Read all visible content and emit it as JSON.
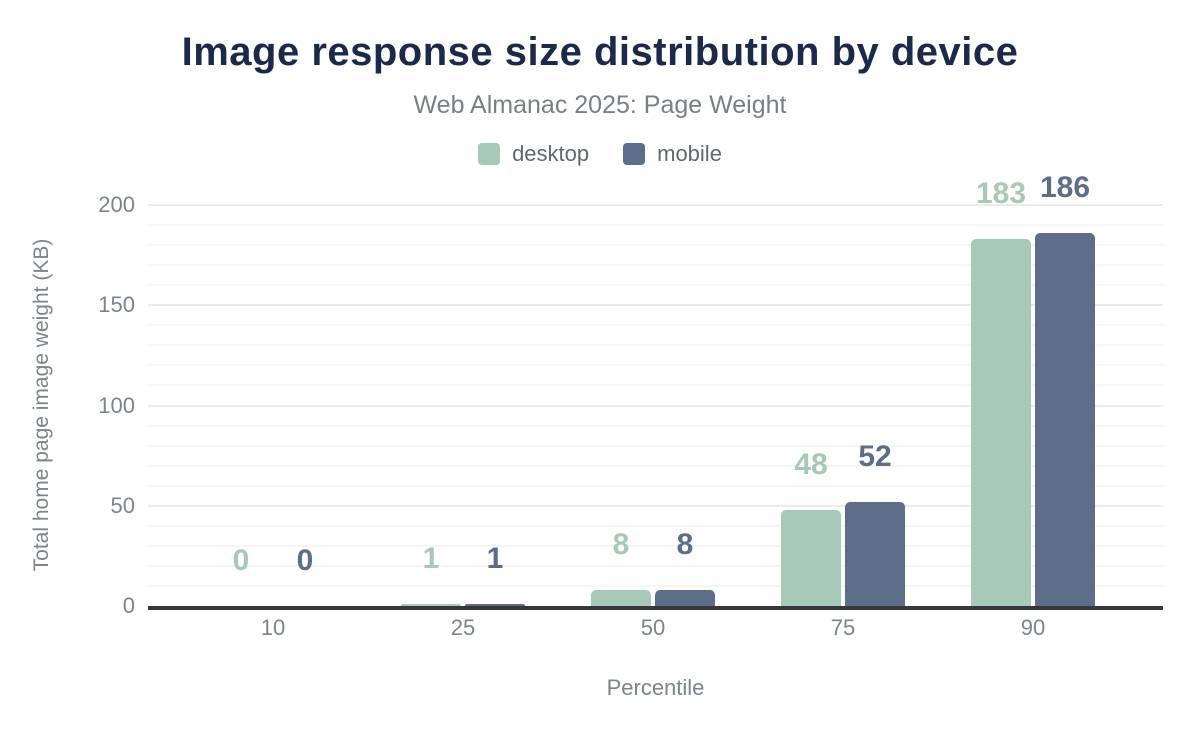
{
  "header": {
    "title": "Image response size distribution by device",
    "subtitle": "Web Almanac 2025: Page Weight"
  },
  "legend": {
    "items": [
      {
        "label": "desktop",
        "color": "#a6c9b8"
      },
      {
        "label": "mobile",
        "color": "#5d6e8a"
      }
    ]
  },
  "chart_data": {
    "type": "bar",
    "title": "Image response size distribution by device",
    "subtitle": "Web Almanac 2025: Page Weight",
    "categories": [
      "10",
      "25",
      "50",
      "75",
      "90"
    ],
    "series": [
      {
        "name": "desktop",
        "color": "#a6c9b8",
        "values": [
          0,
          1,
          8,
          48,
          183
        ]
      },
      {
        "name": "mobile",
        "color": "#5d6e8a",
        "values": [
          0,
          1,
          8,
          52,
          186
        ]
      }
    ],
    "xlabel": "Percentile",
    "ylabel": "Total home page image weight (KB)",
    "ylim": [
      0,
      200
    ],
    "yticks": [
      0,
      50,
      100,
      150,
      200
    ],
    "minor_grid_step": 10,
    "major_grid_step": 50,
    "grid": true,
    "legend_position": "top",
    "data_labels": true
  },
  "colors": {
    "title_text": "#1b2a4a",
    "subtitle_text": "#7a7f87",
    "axis_text": "#7d848e",
    "legend_text": "#62686f",
    "axis_line": "#34383c",
    "gridline_minor": "#f6f6f6",
    "gridline_major": "#e9ebec",
    "desktop_bar": "#a6c9b8",
    "mobile_bar": "#5d6e8a",
    "background": "#ffffff"
  }
}
